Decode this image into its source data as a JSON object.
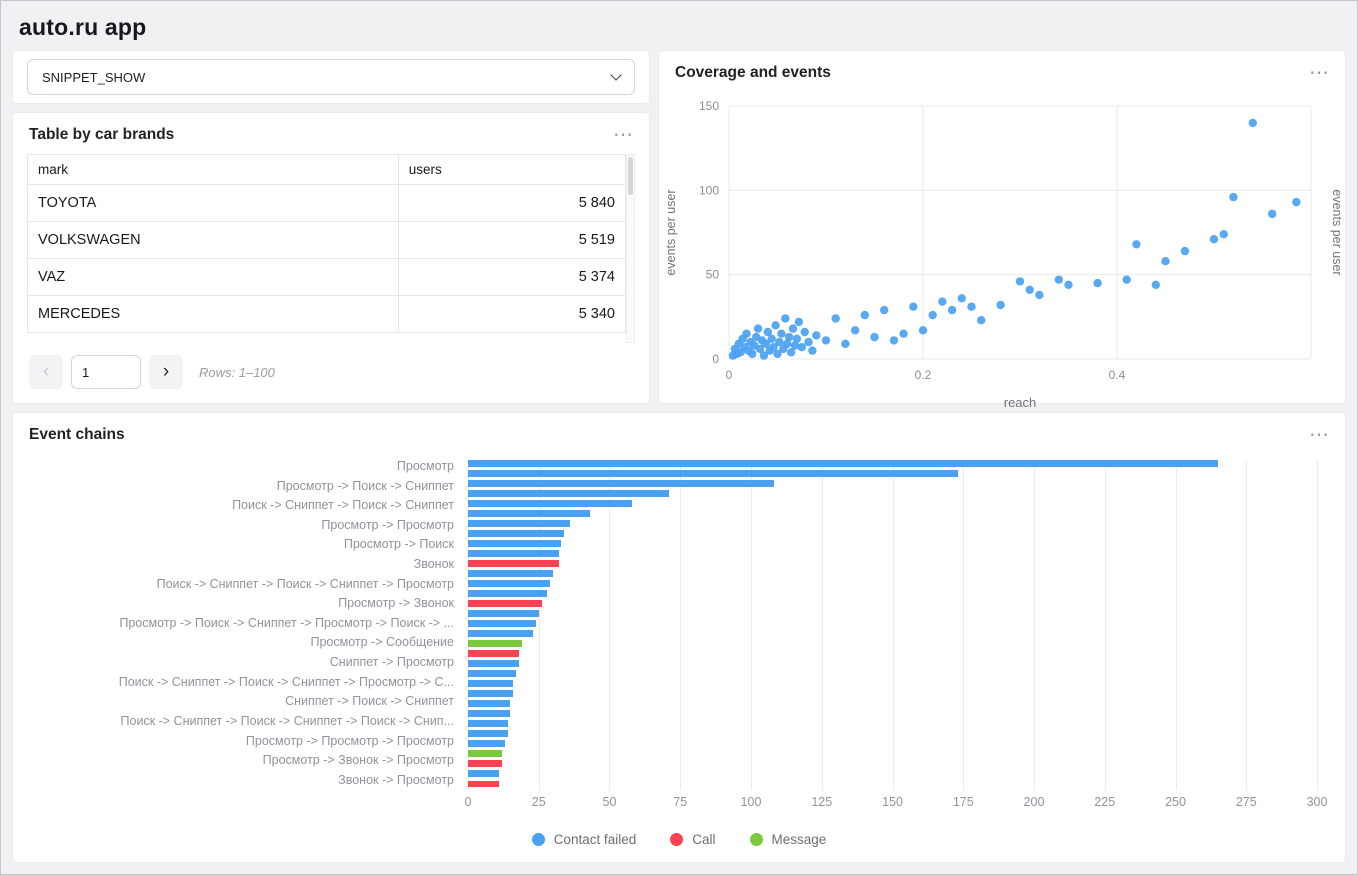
{
  "page": {
    "title": "auto.ru app"
  },
  "icons": {
    "ellipsis": "⋯",
    "chevron_left": "‹",
    "chevron_right": "›",
    "chevron_down": "chevron-down"
  },
  "colors": {
    "blue": "#4aa1f1",
    "red": "#fb4253",
    "green": "#7cc83e"
  },
  "selector": {
    "value": "SNIPPET_SHOW"
  },
  "brands_table": {
    "title": "Table by car brands",
    "columns": [
      "mark",
      "users"
    ],
    "rows": [
      {
        "mark": "TOYOTA",
        "users": "5 840"
      },
      {
        "mark": "VOLKSWAGEN",
        "users": "5 519"
      },
      {
        "mark": "VAZ",
        "users": "5 374"
      },
      {
        "mark": "MERCEDES",
        "users": "5 340"
      }
    ],
    "pagination": {
      "page_value": "1",
      "rows_label": "Rows: 1–100"
    }
  },
  "coverage": {
    "title": "Coverage and events"
  },
  "chains": {
    "title": "Event chains"
  },
  "chart_data": [
    {
      "type": "scatter",
      "title": "Coverage and events",
      "xlabel": "reach",
      "ylabel_left": "events per user",
      "ylabel_right": "events per user",
      "xlim": [
        0,
        0.6
      ],
      "ylim": [
        0,
        150
      ],
      "xticks": [
        0,
        0.2,
        0.4
      ],
      "yticks": [
        0,
        50,
        100,
        150
      ],
      "grid": true,
      "color": "#4aa1f1",
      "points": [
        [
          0.004,
          2
        ],
        [
          0.006,
          6
        ],
        [
          0.008,
          3
        ],
        [
          0.01,
          9
        ],
        [
          0.012,
          4
        ],
        [
          0.014,
          12
        ],
        [
          0.016,
          7
        ],
        [
          0.018,
          15
        ],
        [
          0.02,
          5
        ],
        [
          0.022,
          10
        ],
        [
          0.024,
          3
        ],
        [
          0.026,
          8
        ],
        [
          0.028,
          13
        ],
        [
          0.03,
          18
        ],
        [
          0.032,
          6
        ],
        [
          0.034,
          11
        ],
        [
          0.036,
          2
        ],
        [
          0.038,
          9
        ],
        [
          0.04,
          16
        ],
        [
          0.042,
          5
        ],
        [
          0.044,
          12
        ],
        [
          0.046,
          7
        ],
        [
          0.048,
          20
        ],
        [
          0.05,
          3
        ],
        [
          0.052,
          10
        ],
        [
          0.054,
          15
        ],
        [
          0.056,
          6
        ],
        [
          0.058,
          24
        ],
        [
          0.06,
          9
        ],
        [
          0.062,
          13
        ],
        [
          0.064,
          4
        ],
        [
          0.066,
          18
        ],
        [
          0.068,
          8
        ],
        [
          0.07,
          12
        ],
        [
          0.072,
          22
        ],
        [
          0.075,
          7
        ],
        [
          0.078,
          16
        ],
        [
          0.082,
          10
        ],
        [
          0.086,
          5
        ],
        [
          0.09,
          14
        ],
        [
          0.1,
          11
        ],
        [
          0.11,
          24
        ],
        [
          0.12,
          9
        ],
        [
          0.13,
          17
        ],
        [
          0.14,
          26
        ],
        [
          0.15,
          13
        ],
        [
          0.16,
          29
        ],
        [
          0.17,
          11
        ],
        [
          0.18,
          15
        ],
        [
          0.19,
          31
        ],
        [
          0.2,
          17
        ],
        [
          0.21,
          26
        ],
        [
          0.22,
          34
        ],
        [
          0.23,
          29
        ],
        [
          0.24,
          36
        ],
        [
          0.25,
          31
        ],
        [
          0.26,
          23
        ],
        [
          0.28,
          32
        ],
        [
          0.3,
          46
        ],
        [
          0.31,
          41
        ],
        [
          0.32,
          38
        ],
        [
          0.34,
          47
        ],
        [
          0.35,
          44
        ],
        [
          0.38,
          45
        ],
        [
          0.41,
          47
        ],
        [
          0.42,
          68
        ],
        [
          0.44,
          44
        ],
        [
          0.45,
          58
        ],
        [
          0.47,
          64
        ],
        [
          0.5,
          71
        ],
        [
          0.51,
          74
        ],
        [
          0.52,
          96
        ],
        [
          0.54,
          140
        ],
        [
          0.56,
          86
        ],
        [
          0.585,
          93
        ]
      ]
    },
    {
      "type": "bar",
      "orientation": "horizontal",
      "title": "Event chains",
      "xlim": [
        0,
        300
      ],
      "xticks": [
        0,
        25,
        50,
        75,
        100,
        125,
        150,
        175,
        200,
        225,
        250,
        275,
        300
      ],
      "legend_position": "bottom",
      "legend": [
        {
          "label": "Contact failed",
          "color": "#4aa1f1"
        },
        {
          "label": "Call",
          "color": "#fb4253"
        },
        {
          "label": "Message",
          "color": "#7cc83e"
        }
      ],
      "bars": [
        {
          "label": "Просмотр",
          "value": 265,
          "category": "Contact failed"
        },
        {
          "label": "",
          "value": 173,
          "category": "Contact failed"
        },
        {
          "label": "Просмотр -> Поиск -> Сниппет",
          "value": 108,
          "category": "Contact failed"
        },
        {
          "label": "",
          "value": 71,
          "category": "Contact failed"
        },
        {
          "label": "Поиск -> Сниппет -> Поиск -> Сниппет",
          "value": 58,
          "category": "Contact failed"
        },
        {
          "label": "",
          "value": 43,
          "category": "Contact failed"
        },
        {
          "label": "Просмотр -> Просмотр",
          "value": 36,
          "category": "Contact failed"
        },
        {
          "label": "",
          "value": 34,
          "category": "Contact failed"
        },
        {
          "label": "Просмотр -> Поиск",
          "value": 33,
          "category": "Contact failed"
        },
        {
          "label": "",
          "value": 32,
          "category": "Contact failed"
        },
        {
          "label": "Звонок",
          "value": 32,
          "category": "Call"
        },
        {
          "label": "",
          "value": 30,
          "category": "Contact failed"
        },
        {
          "label": "Поиск -> Сниппет -> Поиск -> Сниппет -> Просмотр",
          "value": 29,
          "category": "Contact failed"
        },
        {
          "label": "",
          "value": 28,
          "category": "Contact failed"
        },
        {
          "label": "Просмотр -> Звонок",
          "value": 26,
          "category": "Call"
        },
        {
          "label": "",
          "value": 25,
          "category": "Contact failed"
        },
        {
          "label": "Просмотр -> Поиск -> Сниппет -> Просмотр -> Поиск -> ...",
          "value": 24,
          "category": "Contact failed"
        },
        {
          "label": "",
          "value": 23,
          "category": "Contact failed"
        },
        {
          "label": "Просмотр -> Сообщение",
          "value": 19,
          "category": "Message"
        },
        {
          "label": "",
          "value": 18,
          "category": "Call"
        },
        {
          "label": "Сниппет -> Просмотр",
          "value": 18,
          "category": "Contact failed"
        },
        {
          "label": "",
          "value": 17,
          "category": "Contact failed"
        },
        {
          "label": "Поиск -> Сниппет -> Поиск -> Сниппет -> Просмотр -> С...",
          "value": 16,
          "category": "Contact failed"
        },
        {
          "label": "",
          "value": 16,
          "category": "Contact failed"
        },
        {
          "label": "Сниппет -> Поиск -> Сниппет",
          "value": 15,
          "category": "Contact failed"
        },
        {
          "label": "",
          "value": 15,
          "category": "Contact failed"
        },
        {
          "label": "Поиск -> Сниппет -> Поиск -> Сниппет -> Поиск -> Снип...",
          "value": 14,
          "category": "Contact failed"
        },
        {
          "label": "",
          "value": 14,
          "category": "Contact failed"
        },
        {
          "label": "Просмотр -> Просмотр -> Просмотр",
          "value": 13,
          "category": "Contact failed"
        },
        {
          "label": "",
          "value": 12,
          "category": "Message"
        },
        {
          "label": "Просмотр -> Звонок -> Просмотр",
          "value": 12,
          "category": "Call"
        },
        {
          "label": "",
          "value": 11,
          "category": "Contact failed"
        },
        {
          "label": "Звонок -> Просмотр",
          "value": 11,
          "category": "Call"
        }
      ]
    }
  ]
}
